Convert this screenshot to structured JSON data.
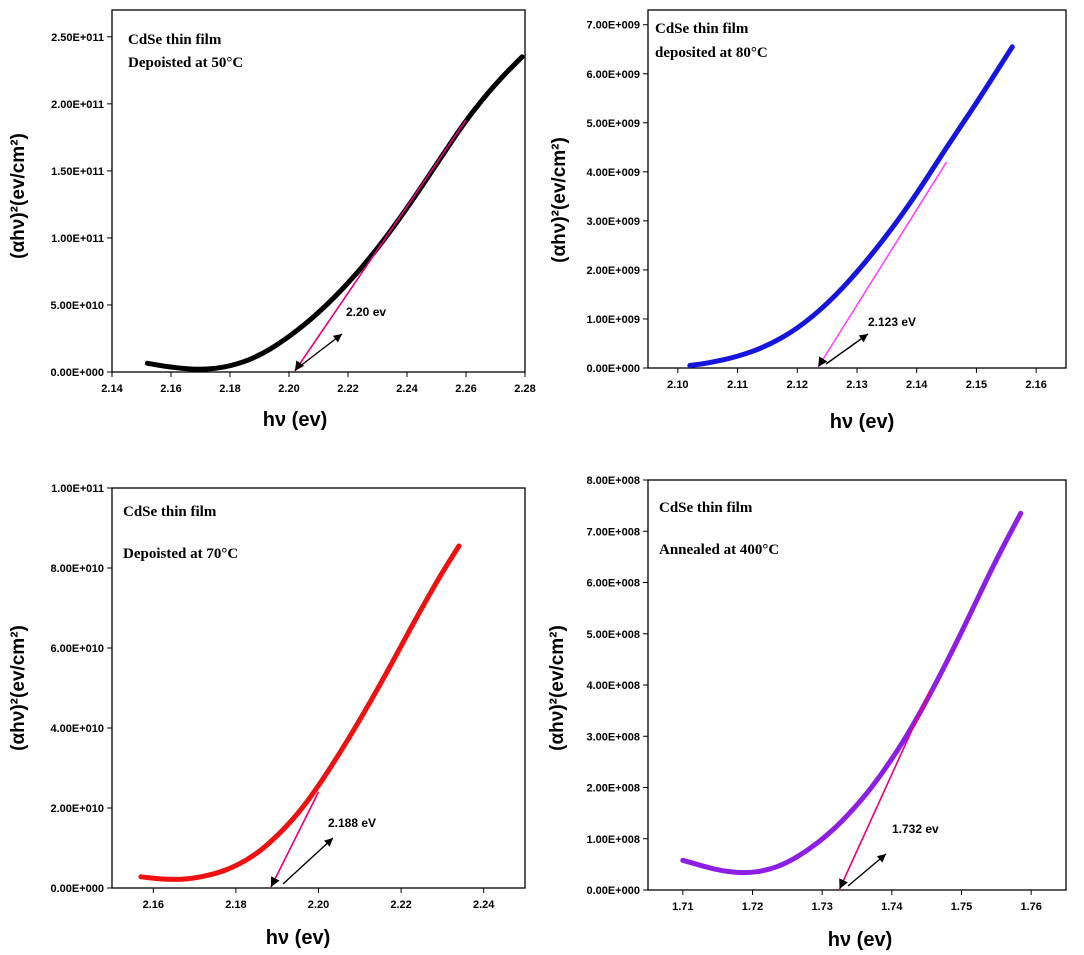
{
  "chart_data": [
    {
      "type": "line",
      "title": "",
      "annotations": [
        "CdSe thin film",
        "Depoisted at 50°C"
      ],
      "xlabel": "hν (ev)",
      "ylabel": "(αhν)²(ev/cm²)",
      "xlim": [
        2.14,
        2.28
      ],
      "ylim": [
        0,
        270000000000.0
      ],
      "xticks": [
        "2.14",
        "2.16",
        "2.18",
        "2.20",
        "2.22",
        "2.24",
        "2.26",
        "2.28"
      ],
      "yticks": [
        "0.00E+000",
        "5.00E+010",
        "1.00E+011",
        "1.50E+011",
        "2.00E+011",
        "2.50E+011"
      ],
      "series": [
        {
          "name": "CdSe 50°C",
          "color": "#000000",
          "x": [
            2.152,
            2.16,
            2.17,
            2.18,
            2.19,
            2.2,
            2.21,
            2.22,
            2.23,
            2.24,
            2.25,
            2.26,
            2.27,
            2.279
          ],
          "y": [
            6500000000.0,
            3500000000.0,
            1500000000.0,
            4000000000.0,
            12000000000.0,
            26000000000.0,
            44000000000.0,
            66000000000.0,
            92000000000.0,
            122000000000.0,
            155000000000.0,
            188000000000.0,
            215000000000.0,
            235000000000.0
          ]
        }
      ],
      "fit_line": {
        "color": "#e6007e",
        "x": [
          2.202,
          2.26
        ],
        "y": [
          0,
          188000000000.0
        ]
      },
      "band_gap_label": "2.20 ev"
    },
    {
      "type": "line",
      "title": "",
      "annotations": [
        "CdSe thin film",
        "deposited at 80°C"
      ],
      "xlabel": "hν (ev)",
      "ylabel": "(αhν)²(ev/cm²)",
      "xlim": [
        2.095,
        2.165
      ],
      "ylim": [
        0,
        7300000000.0
      ],
      "xticks": [
        "2.10",
        "2.11",
        "2.12",
        "2.13",
        "2.14",
        "2.15",
        "2.16"
      ],
      "yticks": [
        "0.00E+000",
        "1.00E+009",
        "2.00E+009",
        "3.00E+009",
        "4.00E+009",
        "5.00E+009",
        "6.00E+009",
        "7.00E+009"
      ],
      "series": [
        {
          "name": "CdSe 80°C",
          "color": "#1515e0",
          "x": [
            2.102,
            2.105,
            2.11,
            2.115,
            2.12,
            2.125,
            2.13,
            2.135,
            2.14,
            2.145,
            2.15,
            2.156
          ],
          "y": [
            50000000.0,
            100000000.0,
            230000000.0,
            450000000.0,
            800000000.0,
            1300000000.0,
            1950000000.0,
            2700000000.0,
            3550000000.0,
            4500000000.0,
            5400000000.0,
            6550000000.0
          ]
        }
      ],
      "fit_line": {
        "color": "#ff44ff",
        "x": [
          2.1235,
          2.145
        ],
        "y": [
          0,
          4200000000.0
        ]
      },
      "band_gap_label": "2.123 eV"
    },
    {
      "type": "line",
      "title": "",
      "annotations": [
        "CdSe thin film",
        "Depoisted at 70°C"
      ],
      "xlabel": "hν (ev)",
      "ylabel": "(αhν)²(ev/cm²)",
      "xlim": [
        2.15,
        2.25
      ],
      "ylim": [
        0,
        100000000000.0
      ],
      "xticks": [
        "2.16",
        "2.18",
        "2.20",
        "2.22",
        "2.24"
      ],
      "yticks": [
        "0.00E+000",
        "2.00E+010",
        "4.00E+010",
        "6.00E+010",
        "8.00E+010",
        "1.00E+011"
      ],
      "series": [
        {
          "name": "CdSe 70°C",
          "color": "#f01010",
          "x": [
            2.157,
            2.162,
            2.168,
            2.175,
            2.18,
            2.185,
            2.19,
            2.195,
            2.2,
            2.205,
            2.21,
            2.215,
            2.22,
            2.225,
            2.23,
            2.234
          ],
          "y": [
            2800000000.0,
            2200000000.0,
            2100000000.0,
            3500000000.0,
            5500000000.0,
            8500000000.0,
            13000000000.0,
            18500000000.0,
            25500000000.0,
            33500000000.0,
            42000000000.0,
            51000000000.0,
            60500000000.0,
            70000000000.0,
            79000000000.0,
            85500000000.0
          ]
        }
      ],
      "fit_line": {
        "color": "#e6007e",
        "x": [
          2.1885,
          2.2
        ],
        "y": [
          0,
          24000000000.0
        ]
      },
      "band_gap_label": "2.188 eV"
    },
    {
      "type": "line",
      "title": "",
      "annotations": [
        "CdSe thin film",
        "Annealed at 400°C"
      ],
      "xlabel": "hν (ev)",
      "ylabel": "(αhν)²(ev/cm²)",
      "xlim": [
        1.705,
        1.765
      ],
      "ylim": [
        0,
        800000000.0
      ],
      "xticks": [
        "1.71",
        "1.72",
        "1.73",
        "1.74",
        "1.75",
        "1.76"
      ],
      "yticks": [
        "0.00E+000",
        "1.00E+008",
        "2.00E+008",
        "3.00E+008",
        "4.00E+008",
        "5.00E+008",
        "6.00E+008",
        "7.00E+008",
        "8.00E+008"
      ],
      "series": [
        {
          "name": "CdSe annealed 400°C",
          "color": "#8c1ee6",
          "x": [
            1.71,
            1.713,
            1.716,
            1.719,
            1.722,
            1.725,
            1.728,
            1.731,
            1.734,
            1.737,
            1.74,
            1.743,
            1.746,
            1.749,
            1.752,
            1.755,
            1.7585
          ],
          "y": [
            58000000.0,
            46000000.0,
            36000000.0,
            33000000.0,
            38000000.0,
            53000000.0,
            78000000.0,
            110000000.0,
            150000000.0,
            198000000.0,
            255000000.0,
            320000000.0,
            395000000.0,
            475000000.0,
            560000000.0,
            645000000.0,
            735000000.0
          ]
        }
      ],
      "fit_line": {
        "color": "#e6007e",
        "x": [
          1.7325,
          1.7455
        ],
        "y": [
          0,
          390000000.0
        ]
      },
      "band_gap_label": "1.732 ev"
    }
  ]
}
